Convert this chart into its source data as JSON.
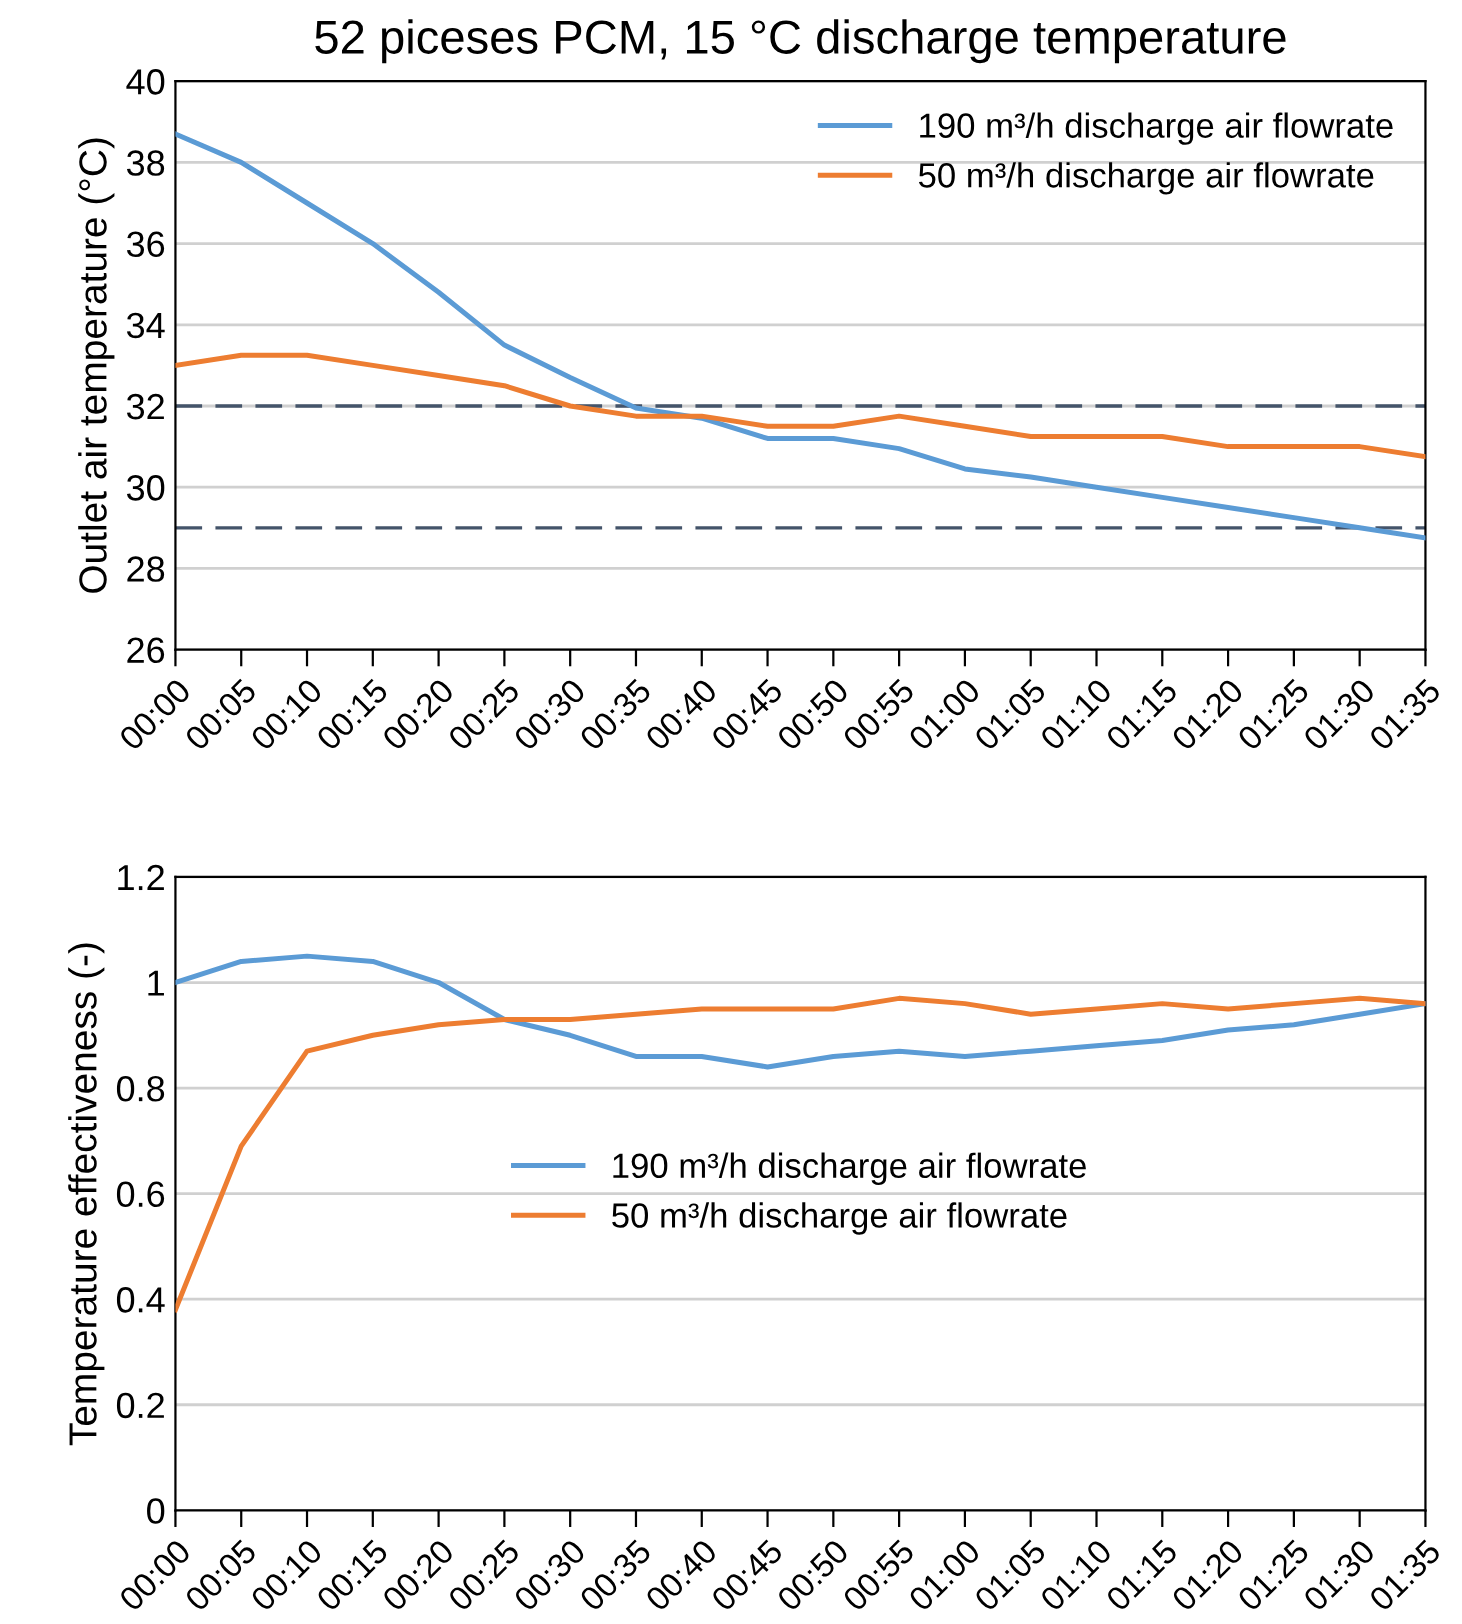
{
  "chart_data": [
    {
      "type": "line",
      "title": "52 piceses PCM, 15 °C discharge temperature",
      "ylabel": "Outlet air temperature (°C)",
      "categories": [
        "00:00",
        "00:05",
        "00:10",
        "00:15",
        "00:20",
        "00:25",
        "00:30",
        "00:35",
        "00:40",
        "00:45",
        "00:50",
        "00:55",
        "01:00",
        "01:05",
        "01:10",
        "01:15",
        "01:20",
        "01:25",
        "01:30",
        "01:35"
      ],
      "series": [
        {
          "name": "190 m³/h discharge air flowrate",
          "color": "#5b9bd5",
          "values": [
            38.7,
            38,
            37,
            36,
            34.8,
            33.5,
            32.7,
            31.95,
            31.7,
            31.2,
            31.2,
            30.95,
            30.45,
            30.25,
            30,
            29.75,
            29.5,
            29.25,
            29,
            28.75
          ]
        },
        {
          "name": "50 m³/h discharge air flowrate",
          "color": "#ed7d31",
          "values": [
            33,
            33.25,
            33.25,
            33,
            32.75,
            32.5,
            32,
            31.75,
            31.75,
            31.5,
            31.5,
            31.75,
            31.5,
            31.25,
            31.25,
            31.25,
            31,
            31,
            31,
            30.75
          ]
        }
      ],
      "ylim": [
        26,
        40
      ],
      "yticks": [
        26,
        28,
        30,
        32,
        34,
        36,
        38,
        40
      ],
      "grid": "y",
      "legend": "top right",
      "marker": "none",
      "line_style": "solid",
      "ref_lines": [
        {
          "axis": "y",
          "value": 32,
          "color": "#44546a",
          "line_style": "dashed"
        },
        {
          "axis": "y",
          "value": 29,
          "color": "#44546a",
          "line_style": "dashed"
        }
      ]
    },
    {
      "type": "line",
      "ylabel": "Temperature effectiveness (-)",
      "categories": [
        "00:00",
        "00:05",
        "00:10",
        "00:15",
        "00:20",
        "00:25",
        "00:30",
        "00:35",
        "00:40",
        "00:45",
        "00:50",
        "00:55",
        "01:00",
        "01:05",
        "01:10",
        "01:15",
        "01:20",
        "01:25",
        "01:30",
        "01:35"
      ],
      "series": [
        {
          "name": "190 m³/h discharge air flowrate",
          "color": "#5b9bd5",
          "values": [
            1.0,
            1.04,
            1.05,
            1.04,
            1.0,
            0.93,
            0.9,
            0.86,
            0.86,
            0.84,
            0.86,
            0.87,
            0.86,
            0.87,
            0.88,
            0.89,
            0.91,
            0.92,
            0.94,
            0.96
          ]
        },
        {
          "name": "50 m³/h discharge air flowrate",
          "color": "#ed7d31",
          "values": [
            0.38,
            0.69,
            0.87,
            0.9,
            0.92,
            0.93,
            0.93,
            0.94,
            0.95,
            0.95,
            0.95,
            0.97,
            0.96,
            0.94,
            0.95,
            0.96,
            0.95,
            0.96,
            0.97,
            0.96
          ]
        }
      ],
      "ylim": [
        0,
        1.2
      ],
      "yticks": [
        0,
        0.2,
        0.4,
        0.6,
        0.8,
        1,
        1.2
      ],
      "grid": "y",
      "legend": "center",
      "marker": "none",
      "line_style": "solid"
    }
  ]
}
